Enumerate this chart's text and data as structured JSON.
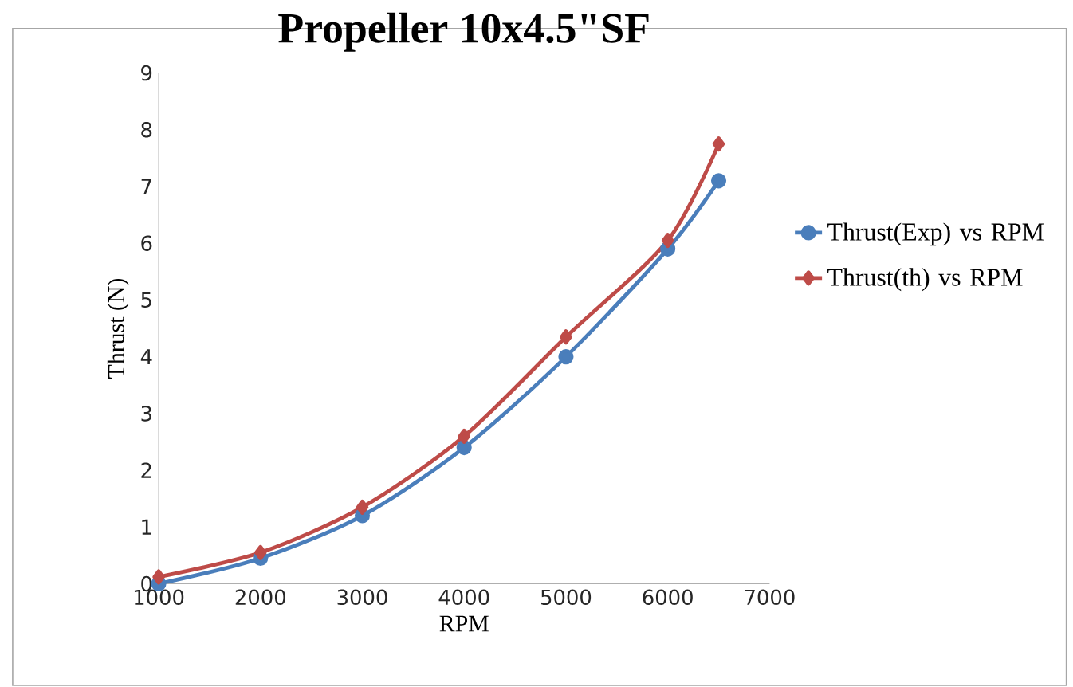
{
  "chart_data": {
    "type": "line",
    "title": "Propeller 10x4.5\"SF",
    "xlabel": "RPM",
    "ylabel": "Thrust (N)",
    "xlim": [
      1000,
      7000
    ],
    "xticks": [
      1000,
      2000,
      3000,
      4000,
      5000,
      6000,
      7000
    ],
    "ylim": [
      0,
      9
    ],
    "yticks": [
      0,
      1,
      2,
      3,
      4,
      5,
      6,
      7,
      8,
      9
    ],
    "grid": false,
    "legend": "right",
    "series": [
      {
        "name": "Thrust(Exp) vs RPM",
        "color": "#4a7ebb",
        "marker": "circle",
        "x": [
          1000,
          2000,
          3000,
          4000,
          5000,
          6000,
          6500
        ],
        "values": [
          0,
          0.45,
          1.2,
          2.4,
          4.0,
          5.9,
          7.1
        ]
      },
      {
        "name": "Thrust(th) vs RPM",
        "color": "#be4b48",
        "marker": "diamond",
        "x": [
          1000,
          2000,
          3000,
          4000,
          5000,
          6000,
          6500
        ],
        "values": [
          0.12,
          0.55,
          1.35,
          2.6,
          4.35,
          6.05,
          7.75
        ]
      }
    ]
  }
}
